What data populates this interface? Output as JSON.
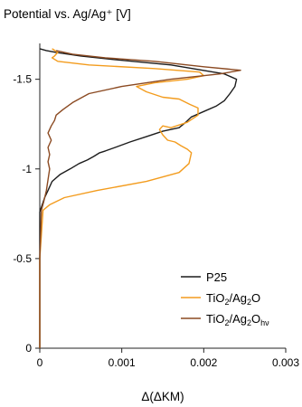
{
  "chart_data": {
    "type": "line",
    "title": "",
    "ylabel": "Potential vs. Ag/Ag⁺ [V]",
    "xlabel": "Δ(ΔKM)",
    "xlim": [
      0,
      0.003
    ],
    "ylim": [
      0,
      -1.7
    ],
    "x_ticks": [
      0,
      0.001,
      0.002,
      0.003
    ],
    "x_tick_labels": [
      "0",
      "0.001",
      "0.002",
      "0.003"
    ],
    "y_ticks": [
      0,
      -0.5,
      -1,
      -1.5
    ],
    "y_tick_labels": [
      "0",
      "-0.5",
      "-1",
      "-1.5"
    ],
    "grid": false,
    "legend_position": "lower-right",
    "series": [
      {
        "name": "P25",
        "name_parts": [
          "P25"
        ],
        "color": "#1c1c1c",
        "x": [
          0,
          0,
          0.0,
          3e-05,
          6e-05,
          0.0001,
          0.00015,
          0.00025,
          0.00037,
          0.00048,
          0.00058,
          0.00066,
          0.00073,
          0.0008,
          0.00092,
          0.0011,
          0.0013,
          0.0015,
          0.0017,
          0.00178,
          0.00185,
          0.002,
          0.00215,
          0.00225,
          0.00232,
          0.00238,
          0.0024,
          0.00225,
          0.0016,
          0.0009,
          0.0005,
          0.0002,
          8e-05,
          0
        ],
        "y": [
          0,
          -0.5,
          -0.76,
          -0.8,
          -0.84,
          -0.88,
          -0.93,
          -0.97,
          -1.0,
          -1.03,
          -1.05,
          -1.07,
          -1.09,
          -1.1,
          -1.12,
          -1.15,
          -1.18,
          -1.21,
          -1.23,
          -1.26,
          -1.29,
          -1.32,
          -1.35,
          -1.38,
          -1.42,
          -1.46,
          -1.5,
          -1.53,
          -1.58,
          -1.61,
          -1.63,
          -1.65,
          -1.66,
          -1.67
        ]
      },
      {
        "name": "TiO₂/Ag₂O",
        "name_parts": [
          "TiO",
          "2",
          "/Ag",
          "2",
          "O"
        ],
        "color": "#f39c1e",
        "x": [
          0,
          0,
          4e-05,
          0.00012,
          0.0003,
          0.0007,
          0.0013,
          0.0017,
          0.00182,
          0.00185,
          0.0018,
          0.00172,
          0.00165,
          0.00156,
          0.0015,
          0.00146,
          0.0015,
          0.0016,
          0.0018,
          0.00193,
          0.00193,
          0.00183,
          0.0017,
          0.0015,
          0.0013,
          0.00118,
          0.0014,
          0.0018,
          0.002,
          0.00195,
          0.0014,
          0.0006,
          0.00022,
          0.00015,
          0.00018,
          0.00022,
          0.00015
        ],
        "y": [
          0,
          -0.5,
          -0.77,
          -0.8,
          -0.84,
          -0.88,
          -0.93,
          -0.98,
          -1.03,
          -1.09,
          -1.11,
          -1.13,
          -1.15,
          -1.16,
          -1.19,
          -1.22,
          -1.24,
          -1.23,
          -1.26,
          -1.3,
          -1.34,
          -1.36,
          -1.39,
          -1.4,
          -1.43,
          -1.46,
          -1.48,
          -1.5,
          -1.52,
          -1.54,
          -1.56,
          -1.58,
          -1.6,
          -1.62,
          -1.63,
          -1.65,
          -1.67
        ]
      },
      {
        "name": "TiO₂/Ag₂Oₕᵥ",
        "name_parts": [
          "TiO",
          "2",
          "/Ag",
          "2",
          "O",
          "hν"
        ],
        "color": "#8b4a22",
        "x": [
          0,
          0,
          2e-05,
          5e-05,
          8e-05,
          0.0001,
          0.00012,
          0.0001,
          0.00012,
          0.0001,
          0.00014,
          0.0001,
          0.00014,
          0.00018,
          0.0002,
          0.00028,
          0.0004,
          0.0006,
          0.001,
          0.0016,
          0.0022,
          0.00245,
          0.002,
          0.0014,
          0.0008,
          0.0004,
          0.0002
        ],
        "y": [
          0,
          -0.5,
          -0.77,
          -0.82,
          -0.88,
          -0.94,
          -1.0,
          -1.04,
          -1.08,
          -1.12,
          -1.16,
          -1.2,
          -1.24,
          -1.27,
          -1.3,
          -1.33,
          -1.37,
          -1.42,
          -1.46,
          -1.5,
          -1.53,
          -1.55,
          -1.57,
          -1.6,
          -1.62,
          -1.64,
          -1.66
        ]
      }
    ]
  }
}
